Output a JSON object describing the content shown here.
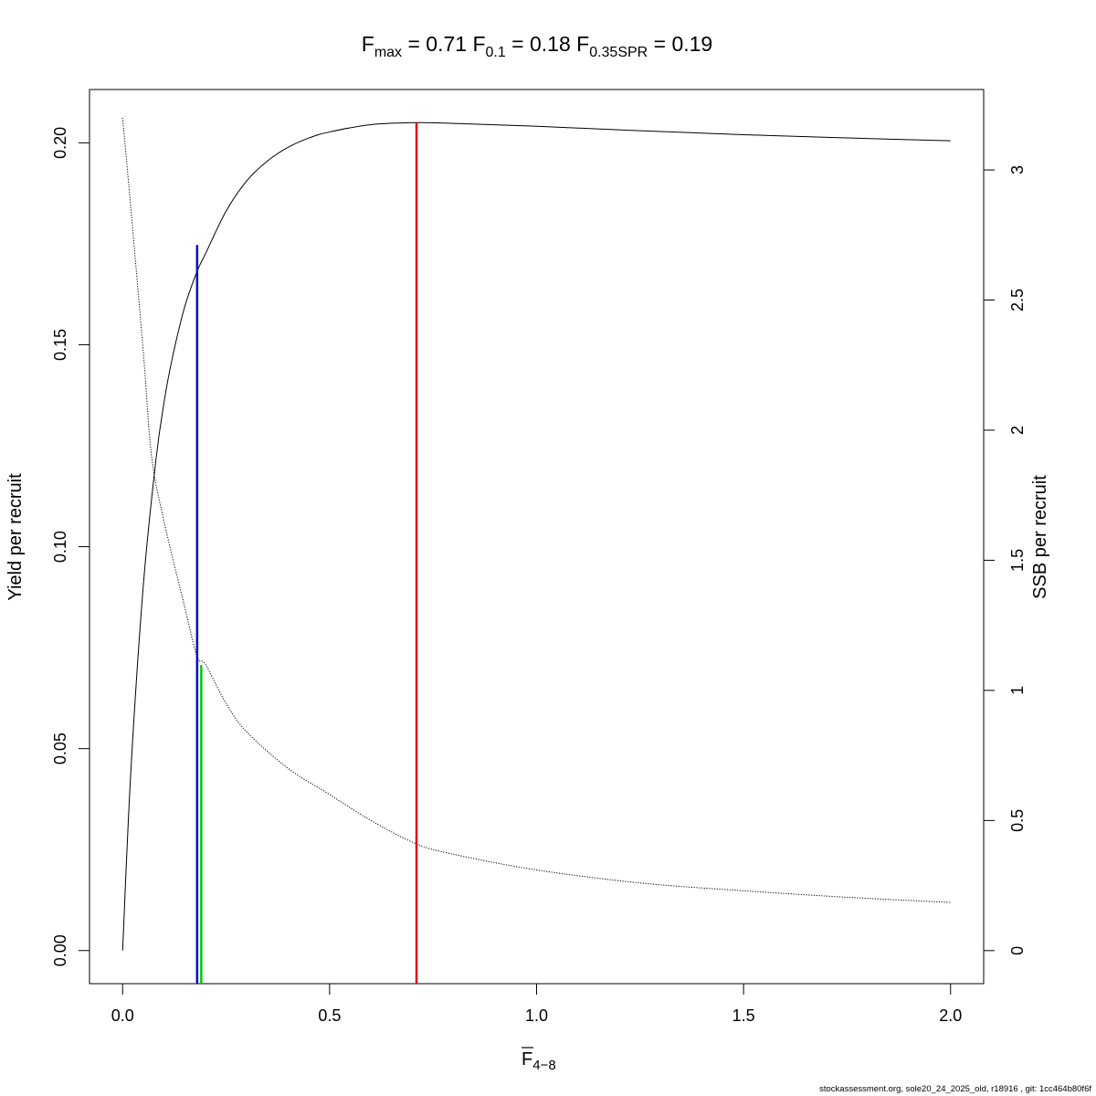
{
  "chart_data": {
    "type": "line",
    "title": {
      "parts": [
        {
          "base": "F",
          "sub": "max",
          "value": "0.71"
        },
        {
          "base": "F",
          "sub": "0.1",
          "value": "0.18"
        },
        {
          "base": "F",
          "sub": "0.35SPR",
          "value": "0.19"
        }
      ]
    },
    "xlabel": {
      "base": "F",
      "sub": "4−8"
    },
    "ylabel_left": "Yield per recruit",
    "ylabel_right": "SSB per recruit",
    "xlim": [
      -0.08,
      2.08
    ],
    "ylim_left": [
      -0.0082,
      0.2132
    ],
    "ylim_right": [
      -0.127,
      3.309
    ],
    "x_ticks": [
      0.0,
      0.5,
      1.0,
      1.5,
      2.0
    ],
    "x_tick_labels": [
      "0.0",
      "0.5",
      "1.0",
      "1.5",
      "2.0"
    ],
    "y_left_ticks": [
      0.0,
      0.05,
      0.1,
      0.15,
      0.2
    ],
    "y_left_tick_labels": [
      "0.00",
      "0.05",
      "0.10",
      "0.15",
      "0.20"
    ],
    "y_right_ticks": [
      0,
      0.5,
      1,
      1.5,
      2,
      2.5,
      3
    ],
    "y_right_tick_labels": [
      "0",
      "0.5",
      "1",
      "1.5",
      "2",
      "2.5",
      "3"
    ],
    "grid": false,
    "series": [
      {
        "axis": "left",
        "style": "solid",
        "color": "#000000",
        "x": [
          0,
          0.02,
          0.05,
          0.08,
          0.1,
          0.12,
          0.15,
          0.18,
          0.2,
          0.25,
          0.3,
          0.35,
          0.4,
          0.45,
          0.5,
          0.6,
          0.71,
          0.8,
          1.0,
          1.25,
          1.5,
          1.75,
          2.0
        ],
        "y": [
          0,
          0.0446,
          0.0904,
          0.1211,
          0.1357,
          0.1467,
          0.1594,
          0.1682,
          0.1725,
          0.1831,
          0.1906,
          0.1955,
          0.1989,
          0.2012,
          0.2027,
          0.2045,
          0.205,
          0.2048,
          0.2041,
          0.203,
          0.202,
          0.2012,
          0.2005
        ]
      },
      {
        "axis": "right",
        "style": "dotted",
        "color": "#000000",
        "x": [
          0,
          0.02,
          0.05,
          0.07,
          0.1,
          0.15,
          0.18,
          0.2,
          0.25,
          0.3,
          0.4,
          0.5,
          0.6,
          0.71,
          0.8,
          1.0,
          1.25,
          1.5,
          1.75,
          2.0
        ],
        "y": [
          3.2,
          2.85,
          2.3,
          1.9,
          1.65,
          1.32,
          1.13,
          1.1,
          0.95,
          0.84,
          0.7,
          0.6,
          0.5,
          0.41,
          0.37,
          0.31,
          0.26,
          0.23,
          0.205,
          0.185
        ]
      }
    ],
    "reference_lines": [
      {
        "name": "Fmax",
        "x": 0.71,
        "y_top": 0.205,
        "color": "#e00000"
      },
      {
        "name": "F0.1",
        "x": 0.18,
        "y_top": 0.1747,
        "color": "#0000e0"
      },
      {
        "name": "F0.35SPR",
        "x": 0.19,
        "y_top": 0.0707,
        "color": "#00cc00"
      }
    ]
  },
  "footer": "stockassessment.org, sole20_24_2025_old, r18916 , git: 1cc464b80f6f"
}
